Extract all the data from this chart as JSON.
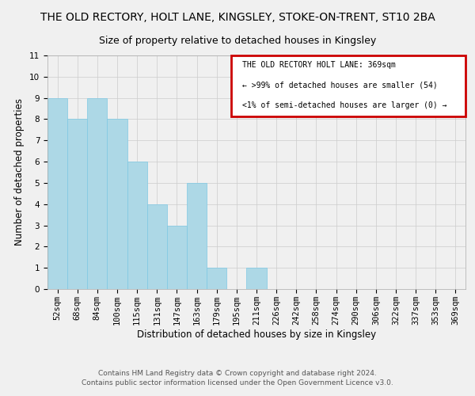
{
  "title": "THE OLD RECTORY, HOLT LANE, KINGSLEY, STOKE-ON-TRENT, ST10 2BA",
  "subtitle": "Size of property relative to detached houses in Kingsley",
  "xlabel": "Distribution of detached houses by size in Kingsley",
  "ylabel": "Number of detached properties",
  "bin_labels": [
    "52sqm",
    "68sqm",
    "84sqm",
    "100sqm",
    "115sqm",
    "131sqm",
    "147sqm",
    "163sqm",
    "179sqm",
    "195sqm",
    "211sqm",
    "226sqm",
    "242sqm",
    "258sqm",
    "274sqm",
    "290sqm",
    "306sqm",
    "322sqm",
    "337sqm",
    "353sqm",
    "369sqm"
  ],
  "bar_values": [
    9,
    8,
    9,
    8,
    6,
    4,
    3,
    5,
    1,
    0,
    1,
    0,
    0,
    0,
    0,
    0,
    0,
    0,
    0,
    0,
    0
  ],
  "bar_color": "#add8e6",
  "bar_edge_color": "#7ec8e3",
  "ylim": [
    0,
    11
  ],
  "yticks": [
    0,
    1,
    2,
    3,
    4,
    5,
    6,
    7,
    8,
    9,
    10,
    11
  ],
  "legend_title": "THE OLD RECTORY HOLT LANE: 369sqm",
  "legend_line1": "← >99% of detached houses are smaller (54)",
  "legend_line2": "<1% of semi-detached houses are larger (0) →",
  "legend_box_color": "#cc0000",
  "footer_line1": "Contains HM Land Registry data © Crown copyright and database right 2024.",
  "footer_line2": "Contains public sector information licensed under the Open Government Licence v3.0.",
  "bg_color": "#f0f0f0",
  "grid_color": "#cccccc",
  "title_fontsize": 10,
  "subtitle_fontsize": 9,
  "axis_label_fontsize": 8.5,
  "tick_fontsize": 7.5,
  "footer_fontsize": 6.5
}
